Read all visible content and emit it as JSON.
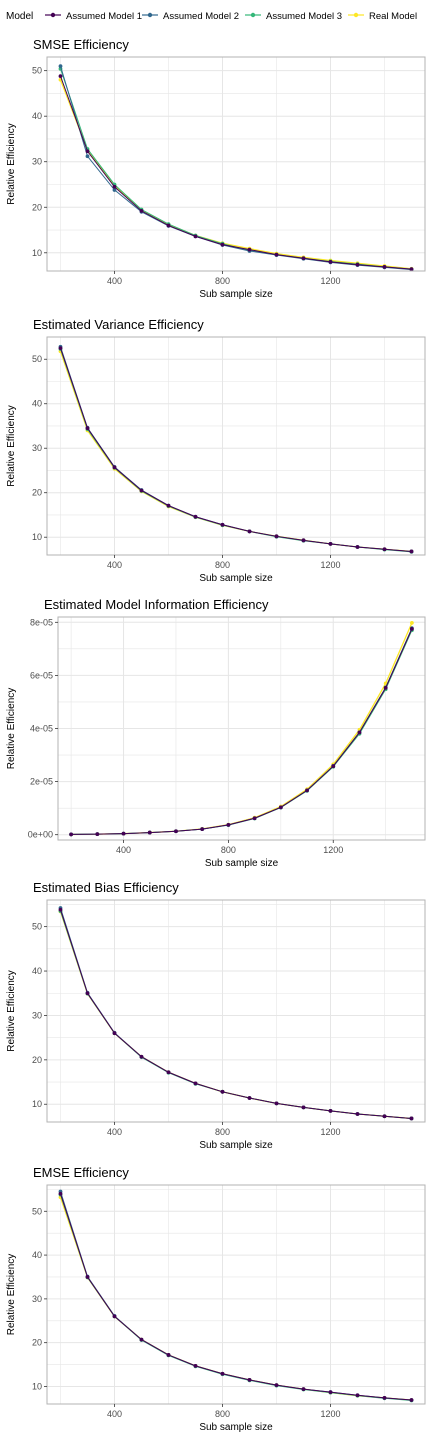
{
  "legend": {
    "title": "Model",
    "entries": [
      "Assumed Model 1",
      "Assumed Model 2",
      "Assumed Model 3",
      "Real Model"
    ]
  },
  "colors": {
    "Assumed Model 1": "#440154",
    "Assumed Model 2": "#31688e",
    "Assumed Model 3": "#35b779",
    "Real Model": "#fde725",
    "grid": "#e6e6e6",
    "panel_border": "#b3b3b3"
  },
  "chart_data": [
    {
      "type": "line",
      "title": "SMSE Efficiency",
      "xlabel": "Sub sample size",
      "ylabel": "Relative Efficiency",
      "xlim": [
        150,
        1550
      ],
      "ylim": [
        6,
        53
      ],
      "xticks": [
        400,
        800,
        1200
      ],
      "xtick_labels": [
        "400",
        "800",
        "1200"
      ],
      "yticks": [
        10,
        20,
        30,
        40,
        50
      ],
      "ytick_labels": [
        "10",
        "20",
        "30",
        "40",
        "50"
      ],
      "x": [
        200,
        300,
        400,
        500,
        600,
        700,
        800,
        900,
        1000,
        1100,
        1200,
        1300,
        1400,
        1500
      ],
      "series": [
        {
          "name": "Assumed Model 1",
          "values": [
            48.8,
            32.3,
            24.5,
            19.2,
            16.0,
            13.6,
            11.8,
            10.7,
            9.6,
            8.8,
            8.0,
            7.4,
            6.9,
            6.4
          ]
        },
        {
          "name": "Assumed Model 2",
          "values": [
            51.0,
            31.2,
            23.8,
            19.0,
            15.9,
            13.6,
            11.7,
            10.4,
            9.5,
            8.7,
            7.9,
            7.3,
            6.8,
            6.3
          ]
        },
        {
          "name": "Assumed Model 3",
          "values": [
            50.4,
            32.8,
            25.0,
            19.5,
            16.3,
            13.8,
            12.0,
            10.5,
            9.6,
            8.8,
            8.1,
            7.5,
            6.9,
            6.4
          ]
        },
        {
          "name": "Real Model",
          "values": [
            48.0,
            32.5,
            24.8,
            19.4,
            16.2,
            13.8,
            12.1,
            10.9,
            9.8,
            9.0,
            8.3,
            7.7,
            7.1,
            6.5
          ]
        }
      ]
    },
    {
      "type": "line",
      "title": "Estimated Variance Efficiency",
      "xlabel": "Sub sample size",
      "ylabel": "Relative Efficiency",
      "xlim": [
        150,
        1550
      ],
      "ylim": [
        6,
        55
      ],
      "xticks": [
        400,
        800,
        1200
      ],
      "xtick_labels": [
        "400",
        "800",
        "1200"
      ],
      "yticks": [
        10,
        20,
        30,
        40,
        50
      ],
      "ytick_labels": [
        "10",
        "20",
        "30",
        "40",
        "50"
      ],
      "x": [
        200,
        300,
        400,
        500,
        600,
        700,
        800,
        900,
        1000,
        1100,
        1200,
        1300,
        1400,
        1500
      ],
      "series": [
        {
          "name": "Assumed Model 1",
          "values": [
            52.5,
            34.5,
            25.7,
            20.5,
            17.1,
            14.6,
            12.8,
            11.3,
            10.2,
            9.3,
            8.5,
            7.8,
            7.3,
            6.8
          ]
        },
        {
          "name": "Assumed Model 2",
          "values": [
            52.8,
            34.6,
            25.8,
            20.6,
            17.1,
            14.6,
            12.8,
            11.3,
            10.2,
            9.3,
            8.5,
            7.8,
            7.3,
            6.8
          ]
        },
        {
          "name": "Assumed Model 3",
          "values": [
            52.3,
            34.3,
            25.6,
            20.4,
            17.0,
            14.5,
            12.7,
            11.3,
            10.1,
            9.2,
            8.5,
            7.8,
            7.2,
            6.7
          ]
        },
        {
          "name": "Real Model",
          "values": [
            51.8,
            34.0,
            25.4,
            20.3,
            16.9,
            14.5,
            12.7,
            11.3,
            10.2,
            9.3,
            8.5,
            7.8,
            7.3,
            6.8
          ]
        }
      ]
    },
    {
      "type": "line",
      "title": "Estimated Model Information Efficiency",
      "xlabel": "Sub sample size",
      "ylabel": "Relative Efficiency",
      "xlim": [
        150,
        1550
      ],
      "ylim": [
        -2e-06,
        8.2e-05
      ],
      "xticks": [
        400,
        800,
        1200
      ],
      "xtick_labels": [
        "400",
        "800",
        "1200"
      ],
      "yticks": [
        0,
        2e-05,
        4e-05,
        6e-05,
        8e-05
      ],
      "ytick_labels": [
        "0e+00",
        "2e-05",
        "4e-05",
        "6e-05",
        "8e-05"
      ],
      "x": [
        200,
        300,
        400,
        500,
        600,
        700,
        800,
        900,
        1000,
        1100,
        1200,
        1300,
        1400,
        1500
      ],
      "series": [
        {
          "name": "Assumed Model 1",
          "values": [
            1e-07,
            2e-07,
            4e-07,
            8e-07,
            1.3e-06,
            2.1e-06,
            3.7e-06,
            6.2e-06,
            1.03e-05,
            1.67e-05,
            2.58e-05,
            3.85e-05,
            5.53e-05,
            7.75e-05
          ]
        },
        {
          "name": "Assumed Model 2",
          "values": [
            1e-07,
            2e-07,
            4e-07,
            8e-07,
            1.3e-06,
            2.1e-06,
            3.7e-06,
            6.2e-06,
            1.03e-05,
            1.67e-05,
            2.59e-05,
            3.86e-05,
            5.55e-05,
            7.78e-05
          ]
        },
        {
          "name": "Assumed Model 3",
          "values": [
            1e-07,
            2e-07,
            4e-07,
            8e-07,
            1.3e-06,
            2.1e-06,
            3.6e-06,
            6.1e-06,
            1.02e-05,
            1.65e-05,
            2.56e-05,
            3.8e-05,
            5.48e-05,
            7.7e-05
          ]
        },
        {
          "name": "Real Model",
          "values": [
            1e-07,
            2e-07,
            4e-07,
            8e-07,
            1.3e-06,
            2.2e-06,
            3.8e-06,
            6.4e-06,
            1.06e-05,
            1.71e-05,
            2.65e-05,
            3.95e-05,
            5.7e-05,
            7.98e-05
          ]
        }
      ]
    },
    {
      "type": "line",
      "title": "Estimated Bias Efficiency",
      "xlabel": "Sub sample size",
      "ylabel": "Relative Efficiency",
      "xlim": [
        150,
        1550
      ],
      "ylim": [
        6,
        56
      ],
      "xticks": [
        400,
        800,
        1200
      ],
      "xtick_labels": [
        "400",
        "800",
        "1200"
      ],
      "yticks": [
        10,
        20,
        30,
        40,
        50
      ],
      "ytick_labels": [
        "10",
        "20",
        "30",
        "40",
        "50"
      ],
      "x": [
        200,
        300,
        400,
        500,
        600,
        700,
        800,
        900,
        1000,
        1100,
        1200,
        1300,
        1400,
        1500
      ],
      "series": [
        {
          "name": "Assumed Model 1",
          "values": [
            53.8,
            35.0,
            26.0,
            20.7,
            17.2,
            14.7,
            12.8,
            11.4,
            10.2,
            9.3,
            8.5,
            7.8,
            7.3,
            6.8
          ]
        },
        {
          "name": "Assumed Model 2",
          "values": [
            54.2,
            35.1,
            26.1,
            20.7,
            17.2,
            14.7,
            12.8,
            11.4,
            10.2,
            9.3,
            8.5,
            7.8,
            7.3,
            6.8
          ]
        },
        {
          "name": "Assumed Model 3",
          "values": [
            53.5,
            34.9,
            26.0,
            20.6,
            17.1,
            14.6,
            12.8,
            11.4,
            10.2,
            9.3,
            8.5,
            7.8,
            7.3,
            6.8
          ]
        },
        {
          "name": "Real Model",
          "values": [
            53.4,
            34.9,
            26.0,
            20.7,
            17.2,
            14.7,
            12.8,
            11.4,
            10.2,
            9.3,
            8.5,
            7.8,
            7.3,
            6.8
          ]
        }
      ]
    },
    {
      "type": "line",
      "title": "EMSE Efficiency",
      "xlabel": "Sub sample size",
      "ylabel": "Relative Efficiency",
      "xlim": [
        150,
        1550
      ],
      "ylim": [
        6,
        56
      ],
      "xticks": [
        400,
        800,
        1200
      ],
      "xtick_labels": [
        "400",
        "800",
        "1200"
      ],
      "yticks": [
        10,
        20,
        30,
        40,
        50
      ],
      "ytick_labels": [
        "10",
        "20",
        "30",
        "40",
        "50"
      ],
      "x": [
        200,
        300,
        400,
        500,
        600,
        700,
        800,
        900,
        1000,
        1100,
        1200,
        1300,
        1400,
        1500
      ],
      "series": [
        {
          "name": "Assumed Model 1",
          "values": [
            54.0,
            35.0,
            26.0,
            20.7,
            17.2,
            14.7,
            12.9,
            11.5,
            10.3,
            9.4,
            8.7,
            8.0,
            7.4,
            6.9
          ]
        },
        {
          "name": "Assumed Model 2",
          "values": [
            54.5,
            35.1,
            26.1,
            20.7,
            17.2,
            14.7,
            12.9,
            11.5,
            10.3,
            9.4,
            8.7,
            8.0,
            7.4,
            6.9
          ]
        },
        {
          "name": "Assumed Model 3",
          "values": [
            53.8,
            34.9,
            26.0,
            20.6,
            17.1,
            14.6,
            12.8,
            11.4,
            10.2,
            9.3,
            8.6,
            7.9,
            7.3,
            6.8
          ]
        },
        {
          "name": "Real Model",
          "values": [
            53.2,
            34.9,
            26.0,
            20.7,
            17.2,
            14.7,
            12.9,
            11.5,
            10.3,
            9.4,
            8.6,
            7.9,
            7.4,
            6.9
          ]
        }
      ]
    }
  ]
}
